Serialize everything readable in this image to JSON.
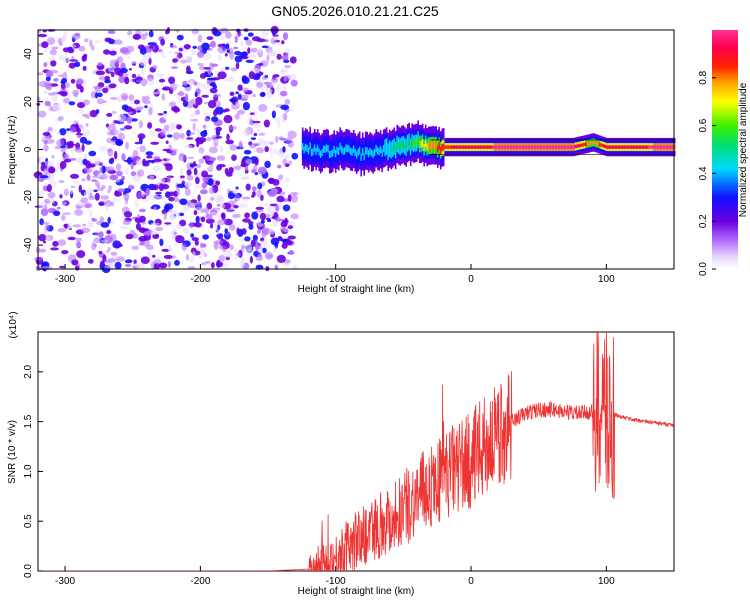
{
  "title": "GN05.2026.010.21.21.C25",
  "colors": {
    "snr_line": "#ee3333",
    "axes": "#000000",
    "background": "#ffffff"
  },
  "chart_data": [
    {
      "type": "heatmap",
      "name_hint": "top spectrogram",
      "title": "GN05.2026.010.21.21.C25",
      "xlabel": "Height of straight line (km)",
      "ylabel": "Frequency (Hz)",
      "xlim": [
        -320,
        150
      ],
      "ylim": [
        -50,
        50
      ],
      "xticks": [
        -300,
        -200,
        -100,
        0,
        100
      ],
      "xtick_labels": [
        "-300",
        "-200",
        "-100",
        "0",
        "100"
      ],
      "yticks": [
        -40,
        -20,
        0,
        20,
        40
      ],
      "ytick_labels": [
        "-40",
        "-20",
        "0",
        "20",
        "40"
      ],
      "colorbar": {
        "label": "Normalized spectral amplitude",
        "range": [
          0,
          1
        ],
        "ticks": [
          0.0,
          0.2,
          0.4,
          0.6,
          0.8
        ],
        "tick_labels": [
          "0.0",
          "0.2",
          "0.4",
          "0.6",
          "0.8"
        ],
        "colormap": "rainbow (white-violet-blue-cyan-green-yellow-red-magenta)"
      },
      "features": {
        "noise_region_x": [
          -320,
          -130
        ],
        "signal_track": [
          {
            "x": -125,
            "f": 1,
            "amp": 0.35
          },
          {
            "x": -110,
            "f": -1,
            "amp": 0.3
          },
          {
            "x": -95,
            "f": 0,
            "amp": 0.35
          },
          {
            "x": -80,
            "f": -2,
            "amp": 0.35
          },
          {
            "x": -65,
            "f": 0,
            "amp": 0.4
          },
          {
            "x": -50,
            "f": 2,
            "amp": 0.45
          },
          {
            "x": -40,
            "f": 3,
            "amp": 0.55
          },
          {
            "x": -30,
            "f": 1,
            "amp": 0.75
          },
          {
            "x": -15,
            "f": 1,
            "amp": 0.85
          },
          {
            "x": 0,
            "f": 1,
            "amp": 0.9
          },
          {
            "x": 25,
            "f": 1,
            "amp": 0.95
          },
          {
            "x": 50,
            "f": 1,
            "amp": 0.95
          },
          {
            "x": 75,
            "f": 1,
            "amp": 0.95
          },
          {
            "x": 90,
            "f": 3,
            "amp": 0.7
          },
          {
            "x": 100,
            "f": 1,
            "amp": 0.9
          },
          {
            "x": 150,
            "f": 1,
            "amp": 0.95
          }
        ]
      }
    },
    {
      "type": "line",
      "name_hint": "bottom SNR",
      "xlabel": "Height of straight line (km)",
      "ylabel": "SNR (10 * v/v)",
      "y_multiplier_label": "(x10⁴)",
      "y_multiplier": 10000,
      "xlim": [
        -320,
        150
      ],
      "ylim": [
        0,
        2.4
      ],
      "xticks": [
        -300,
        -200,
        -100,
        0,
        100
      ],
      "xtick_labels": [
        "-300",
        "-200",
        "-100",
        "0",
        "100"
      ],
      "yticks": [
        0.0,
        0.5,
        1.0,
        1.5,
        2.0
      ],
      "ytick_labels": [
        "0.0",
        "0.5",
        "1.0",
        "1.5",
        "2.0"
      ],
      "series": [
        {
          "x": [
            -320,
            -150,
            -120,
            -110,
            -100,
            -90,
            -80,
            -70,
            -60,
            -50,
            -40,
            -30,
            -20,
            -10,
            0,
            10,
            20,
            30,
            40,
            50,
            60,
            70,
            80,
            90,
            95,
            100,
            105,
            110,
            120,
            130,
            140,
            150
          ],
          "y": [
            0.0,
            0.0,
            0.02,
            0.05,
            0.12,
            0.25,
            0.35,
            0.45,
            0.52,
            0.62,
            0.75,
            0.85,
            0.95,
            1.05,
            1.1,
            1.25,
            1.35,
            1.5,
            1.58,
            1.62,
            1.62,
            1.6,
            1.58,
            1.6,
            1.55,
            1.6,
            1.58,
            1.55,
            1.52,
            1.5,
            1.48,
            1.47
          ]
        }
      ]
    }
  ]
}
